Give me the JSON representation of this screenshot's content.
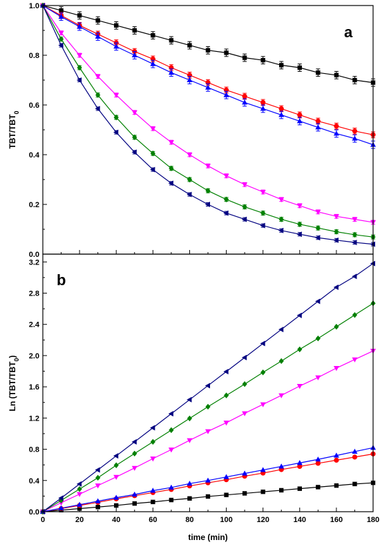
{
  "chart_data": [
    {
      "panel": "a",
      "type": "line",
      "ylabel": "TBT/TBT",
      "ylabel_sub": "0",
      "xlim": [
        0,
        180
      ],
      "ylim": [
        0,
        1.0
      ],
      "yticks": [
        "0.0",
        "0.2",
        "0.4",
        "0.6",
        "0.8",
        "1.0"
      ],
      "error_bars": true,
      "x": [
        0,
        10,
        20,
        30,
        40,
        50,
        60,
        70,
        80,
        90,
        100,
        110,
        120,
        130,
        140,
        150,
        160,
        170,
        180
      ],
      "series": [
        {
          "marker": "square",
          "color": "#000000",
          "values": [
            1.0,
            0.98,
            0.96,
            0.94,
            0.92,
            0.9,
            0.88,
            0.86,
            0.84,
            0.82,
            0.81,
            0.79,
            0.78,
            0.76,
            0.75,
            0.73,
            0.72,
            0.7,
            0.69
          ],
          "err": 0.015
        },
        {
          "marker": "circle",
          "color": "#ff0000",
          "values": [
            1.0,
            0.96,
            0.92,
            0.885,
            0.85,
            0.815,
            0.785,
            0.75,
            0.72,
            0.69,
            0.66,
            0.635,
            0.61,
            0.585,
            0.56,
            0.535,
            0.515,
            0.495,
            0.48
          ],
          "err": 0.012
        },
        {
          "marker": "triangle-up",
          "color": "#0000ff",
          "values": [
            1.0,
            0.955,
            0.915,
            0.875,
            0.835,
            0.8,
            0.765,
            0.73,
            0.7,
            0.67,
            0.64,
            0.61,
            0.585,
            0.56,
            0.535,
            0.51,
            0.485,
            0.465,
            0.44
          ],
          "err": 0.015
        },
        {
          "marker": "triangle-down",
          "color": "#ff00ff",
          "values": [
            1.0,
            0.89,
            0.8,
            0.715,
            0.64,
            0.57,
            0.505,
            0.45,
            0.4,
            0.355,
            0.315,
            0.28,
            0.25,
            0.22,
            0.195,
            0.17,
            0.152,
            0.14,
            0.128
          ],
          "err": 0.008
        },
        {
          "marker": "diamond",
          "color": "#008000",
          "values": [
            1.0,
            0.865,
            0.75,
            0.64,
            0.55,
            0.47,
            0.405,
            0.345,
            0.3,
            0.255,
            0.22,
            0.19,
            0.165,
            0.14,
            0.12,
            0.105,
            0.09,
            0.078,
            0.069
          ],
          "err": 0.008
        },
        {
          "marker": "triangle-left",
          "color": "#000080",
          "values": [
            1.0,
            0.84,
            0.7,
            0.585,
            0.49,
            0.41,
            0.34,
            0.285,
            0.24,
            0.2,
            0.165,
            0.14,
            0.115,
            0.095,
            0.08,
            0.066,
            0.056,
            0.047,
            0.04
          ],
          "err": 0.007
        }
      ]
    },
    {
      "panel": "b",
      "type": "line",
      "xlabel": "time (min)",
      "ylabel": "Ln (TBT/TBT",
      "ylabel_sub": "0",
      "ylabel_end": ")",
      "xlim": [
        0,
        180
      ],
      "ylim": [
        0,
        3.3
      ],
      "xticks": [
        "0",
        "20",
        "40",
        "60",
        "80",
        "100",
        "120",
        "140",
        "160",
        "180"
      ],
      "yticks": [
        "0.0",
        "0.4",
        "0.8",
        "1.2",
        "1.6",
        "2.0",
        "2.4",
        "2.8",
        "3.2"
      ],
      "x": [
        0,
        10,
        20,
        30,
        40,
        50,
        60,
        70,
        80,
        90,
        100,
        110,
        120,
        130,
        140,
        150,
        160,
        170,
        180
      ],
      "series": [
        {
          "marker": "square",
          "color": "#000000",
          "values": [
            0.0,
            0.02,
            0.04,
            0.06,
            0.08,
            0.105,
            0.125,
            0.15,
            0.17,
            0.195,
            0.215,
            0.235,
            0.255,
            0.275,
            0.295,
            0.315,
            0.335,
            0.355,
            0.37
          ]
        },
        {
          "marker": "circle",
          "color": "#ff0000",
          "values": [
            0.0,
            0.04,
            0.08,
            0.12,
            0.165,
            0.205,
            0.245,
            0.285,
            0.33,
            0.37,
            0.41,
            0.455,
            0.495,
            0.54,
            0.58,
            0.62,
            0.66,
            0.7,
            0.74
          ]
        },
        {
          "marker": "triangle-up",
          "color": "#0000ff",
          "values": [
            0.0,
            0.045,
            0.09,
            0.135,
            0.18,
            0.22,
            0.27,
            0.31,
            0.36,
            0.4,
            0.445,
            0.49,
            0.535,
            0.58,
            0.625,
            0.67,
            0.72,
            0.77,
            0.82
          ]
        },
        {
          "marker": "triangle-down",
          "color": "#ff00ff",
          "values": [
            0.0,
            0.115,
            0.225,
            0.335,
            0.445,
            0.56,
            0.68,
            0.795,
            0.915,
            1.03,
            1.14,
            1.26,
            1.375,
            1.49,
            1.61,
            1.72,
            1.84,
            1.95,
            2.06
          ]
        },
        {
          "marker": "diamond",
          "color": "#008000",
          "values": [
            0.0,
            0.145,
            0.29,
            0.435,
            0.595,
            0.745,
            0.895,
            1.045,
            1.195,
            1.345,
            1.49,
            1.635,
            1.785,
            1.93,
            2.08,
            2.22,
            2.37,
            2.52,
            2.67
          ]
        },
        {
          "marker": "triangle-left",
          "color": "#000080",
          "values": [
            0.0,
            0.175,
            0.355,
            0.535,
            0.715,
            0.895,
            1.075,
            1.255,
            1.435,
            1.615,
            1.795,
            1.975,
            2.155,
            2.335,
            2.515,
            2.695,
            2.875,
            3.015,
            3.18
          ]
        }
      ]
    }
  ]
}
